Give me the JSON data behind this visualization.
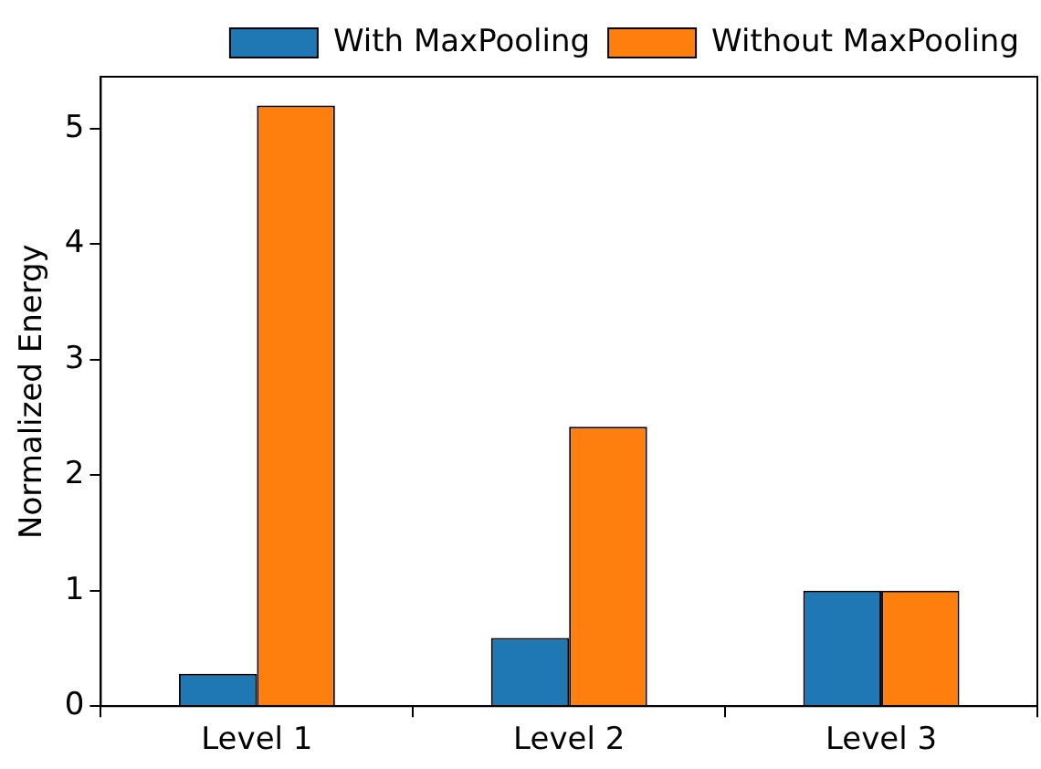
{
  "chart_data": {
    "type": "bar",
    "ylabel": "Normalized Energy",
    "categories": [
      "Level 1",
      "Level 2",
      "Level 3"
    ],
    "series": [
      {
        "name": "With MaxPooling",
        "color": "#1f77b4",
        "values": [
          0.28,
          0.59,
          1.0
        ]
      },
      {
        "name": "Without MaxPooling",
        "color": "#ff7f0e",
        "values": [
          5.2,
          2.42,
          1.0
        ]
      }
    ],
    "ylim": [
      0,
      5.45
    ],
    "yticks": [
      0,
      1,
      2,
      3,
      4,
      5
    ],
    "grid": false,
    "legend": "top right"
  }
}
